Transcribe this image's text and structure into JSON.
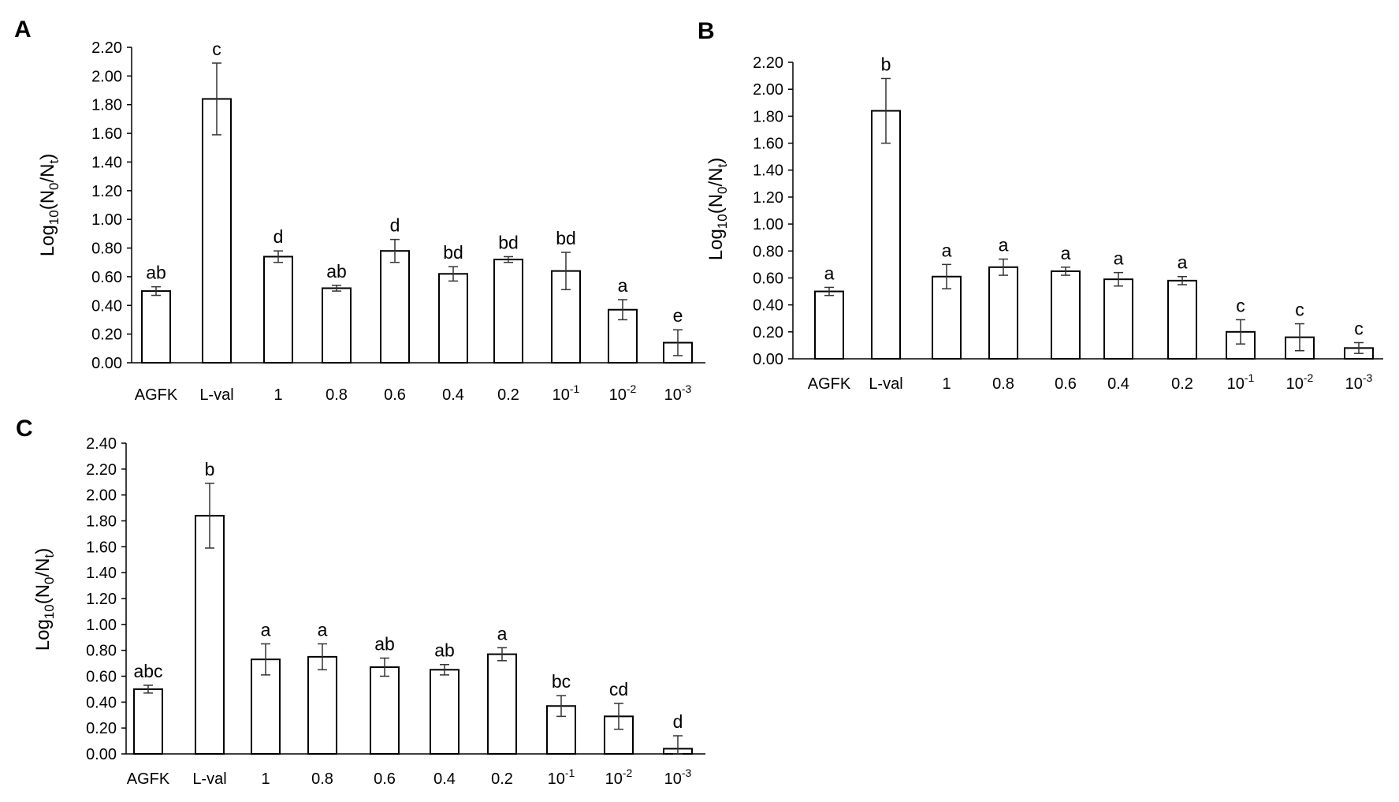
{
  "chart_data": [
    {
      "type": "bar",
      "panel": "A",
      "ylabel": "Log10(N0/Nt)",
      "ylim": [
        0,
        2.2
      ],
      "yticks": [
        "0.00",
        "0.20",
        "0.40",
        "0.60",
        "0.80",
        "1.00",
        "1.20",
        "1.40",
        "1.60",
        "1.80",
        "2.00",
        "2.20"
      ],
      "categories": [
        "AGFK",
        "L-val",
        "1",
        "0.8",
        "0.6",
        "0.4",
        "0.2",
        "10-1",
        "10-2",
        "10-3"
      ],
      "values": [
        0.5,
        1.84,
        0.74,
        0.52,
        0.78,
        0.62,
        0.72,
        0.64,
        0.37,
        0.14
      ],
      "errors": [
        0.03,
        0.25,
        0.04,
        0.02,
        0.08,
        0.05,
        0.02,
        0.13,
        0.07,
        0.09
      ],
      "significance": [
        "ab",
        "c",
        "d",
        "ab",
        "d",
        "bd",
        "bd",
        "bd",
        "a",
        "e"
      ]
    },
    {
      "type": "bar",
      "panel": "B",
      "ylabel": "Log10(N0/Nt)",
      "ylim": [
        0,
        2.2
      ],
      "yticks": [
        "0.00",
        "0.20",
        "0.40",
        "0.60",
        "0.80",
        "1.00",
        "1.20",
        "1.40",
        "1.60",
        "1.80",
        "2.00",
        "2.20"
      ],
      "categories": [
        "AGFK",
        "L-val",
        "1",
        "0.8",
        "0.6",
        "0.4",
        "0.2",
        "10-1",
        "10-2",
        "10-3"
      ],
      "values": [
        0.5,
        1.84,
        0.61,
        0.68,
        0.65,
        0.59,
        0.58,
        0.2,
        0.16,
        0.08
      ],
      "errors": [
        0.03,
        0.24,
        0.09,
        0.06,
        0.03,
        0.05,
        0.03,
        0.09,
        0.1,
        0.04
      ],
      "significance": [
        "a",
        "b",
        "a",
        "a",
        "a",
        "a",
        "a",
        "c",
        "c",
        "c"
      ]
    },
    {
      "type": "bar",
      "panel": "C",
      "ylabel": "Log10(N0/Nt)",
      "ylim": [
        0,
        2.4
      ],
      "yticks": [
        "0.00",
        "0.20",
        "0.40",
        "0.60",
        "0.80",
        "1.00",
        "1.20",
        "1.40",
        "1.60",
        "1.80",
        "2.00",
        "2.20",
        "2.40"
      ],
      "categories": [
        "AGFK",
        "L-val",
        "1",
        "0.8",
        "0.6",
        "0.4",
        "0.2",
        "10-1",
        "10-2",
        "10-3"
      ],
      "values": [
        0.5,
        1.84,
        0.73,
        0.75,
        0.67,
        0.65,
        0.77,
        0.37,
        0.29,
        0.04
      ],
      "errors": [
        0.03,
        0.25,
        0.12,
        0.1,
        0.07,
        0.04,
        0.05,
        0.08,
        0.1,
        0.1
      ],
      "significance": [
        "abc",
        "b",
        "a",
        "a",
        "ab",
        "ab",
        "a",
        "bc",
        "cd",
        "d"
      ]
    }
  ]
}
